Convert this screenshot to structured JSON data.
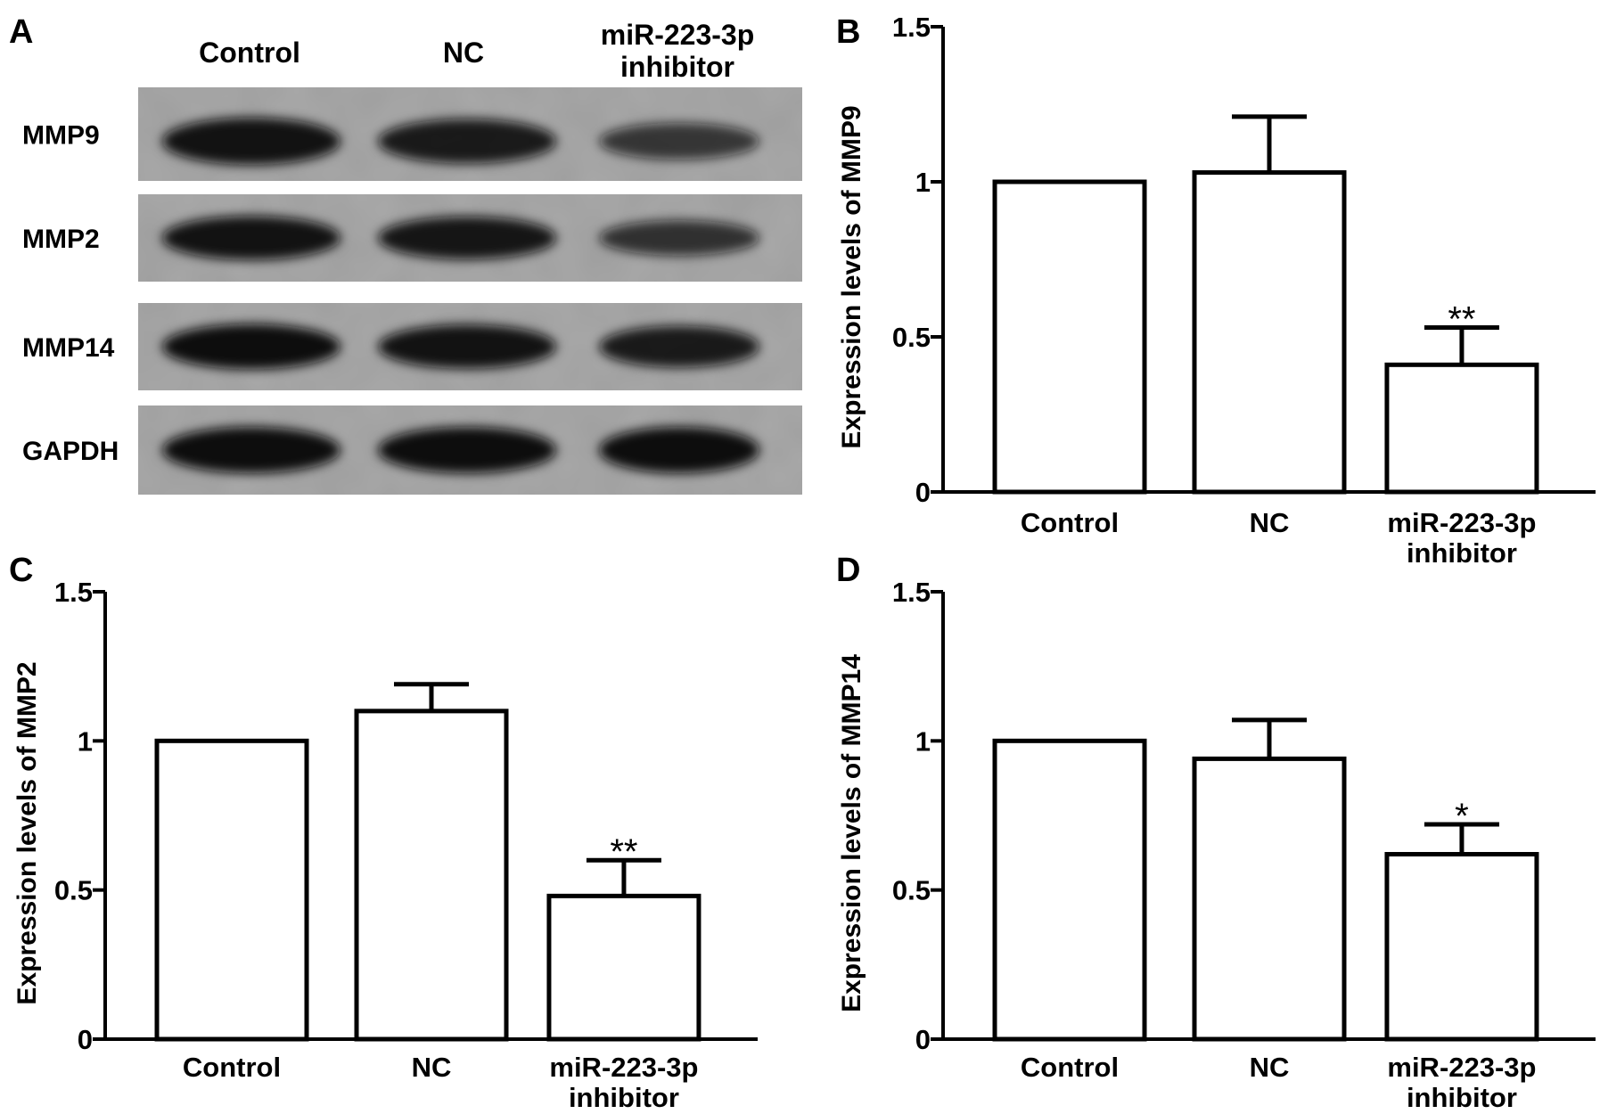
{
  "panels": {
    "A": "A",
    "B": "B",
    "C": "C",
    "D": "D"
  },
  "blot": {
    "lanes": [
      {
        "line1": "Control",
        "line2": ""
      },
      {
        "line1": "NC",
        "line2": ""
      },
      {
        "line1": "miR-223-3p",
        "line2": "inhibitor"
      }
    ],
    "rows": [
      {
        "label": "MMP9",
        "intensities": [
          0.95,
          0.85,
          0.55
        ]
      },
      {
        "label": "MMP2",
        "intensities": [
          0.95,
          0.9,
          0.6
        ]
      },
      {
        "label": "MMP14",
        "intensities": [
          1.0,
          0.95,
          0.85
        ]
      },
      {
        "label": "GAPDH",
        "intensities": [
          1.0,
          1.0,
          1.0
        ]
      }
    ],
    "colors": {
      "background": "#9e9e9e",
      "band": "#111111"
    }
  },
  "chart_data": [
    {
      "panel": "B",
      "type": "bar",
      "categories": [
        [
          "Control"
        ],
        [
          "NC"
        ],
        [
          "miR-223-3p",
          "inhibitor"
        ]
      ],
      "values": [
        1.0,
        1.03,
        0.41
      ],
      "errors": [
        0,
        0.18,
        0.12
      ],
      "significance": [
        "",
        "",
        "**"
      ],
      "ylabel": "Expression levels of MMP9",
      "ylim": [
        0,
        1.5
      ],
      "yticks": [
        "0",
        "0.5",
        "1",
        "1.5"
      ],
      "grid": false
    },
    {
      "panel": "C",
      "type": "bar",
      "categories": [
        [
          "Control"
        ],
        [
          "NC"
        ],
        [
          "miR-223-3p",
          "inhibitor"
        ]
      ],
      "values": [
        1.0,
        1.1,
        0.48
      ],
      "errors": [
        0,
        0.09,
        0.12
      ],
      "significance": [
        "",
        "",
        "**"
      ],
      "ylabel": "Expression levels of MMP2",
      "ylim": [
        0,
        1.5
      ],
      "yticks": [
        "0",
        "0.5",
        "1",
        "1.5"
      ],
      "grid": false
    },
    {
      "panel": "D",
      "type": "bar",
      "categories": [
        [
          "Control"
        ],
        [
          "NC"
        ],
        [
          "miR-223-3p",
          "inhibitor"
        ]
      ],
      "values": [
        1.0,
        0.94,
        0.62
      ],
      "errors": [
        0,
        0.13,
        0.1
      ],
      "significance": [
        "",
        "",
        "*"
      ],
      "ylabel": "Expression levels of MMP14",
      "ylim": [
        0,
        1.5
      ],
      "yticks": [
        "0",
        "0.5",
        "1",
        "1.5"
      ],
      "grid": false
    }
  ]
}
